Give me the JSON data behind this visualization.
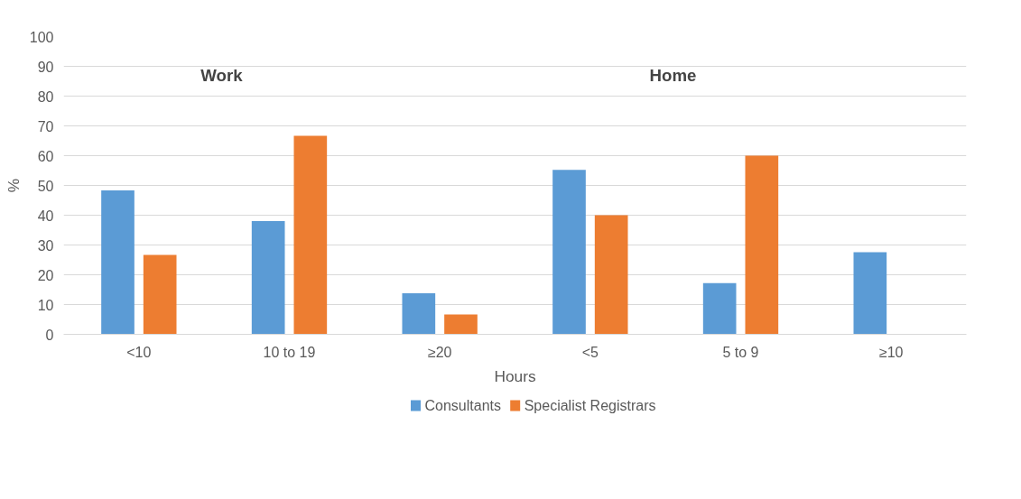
{
  "chart_data": {
    "type": "bar",
    "xlabel": "Hours",
    "ylabel": "%",
    "categories": [
      "<10",
      "10 to 19",
      "≥20",
      "<5",
      "5 to 9",
      "≥10"
    ],
    "series": [
      {
        "name": "Consultants",
        "color": "#5b9bd5",
        "values": [
          48.3,
          38.0,
          13.8,
          55.2,
          17.2,
          27.6
        ]
      },
      {
        "name": "Specialist Registrars",
        "color": "#ed7d31",
        "values": [
          26.7,
          66.7,
          6.7,
          40.0,
          60.0,
          0
        ]
      }
    ],
    "ylim": [
      0,
      100
    ],
    "yticks": [
      0,
      10,
      20,
      30,
      40,
      50,
      60,
      70,
      80,
      90,
      100
    ],
    "grid": "y",
    "legend": "bottom",
    "annotations": [
      "Work",
      "Home"
    ]
  }
}
